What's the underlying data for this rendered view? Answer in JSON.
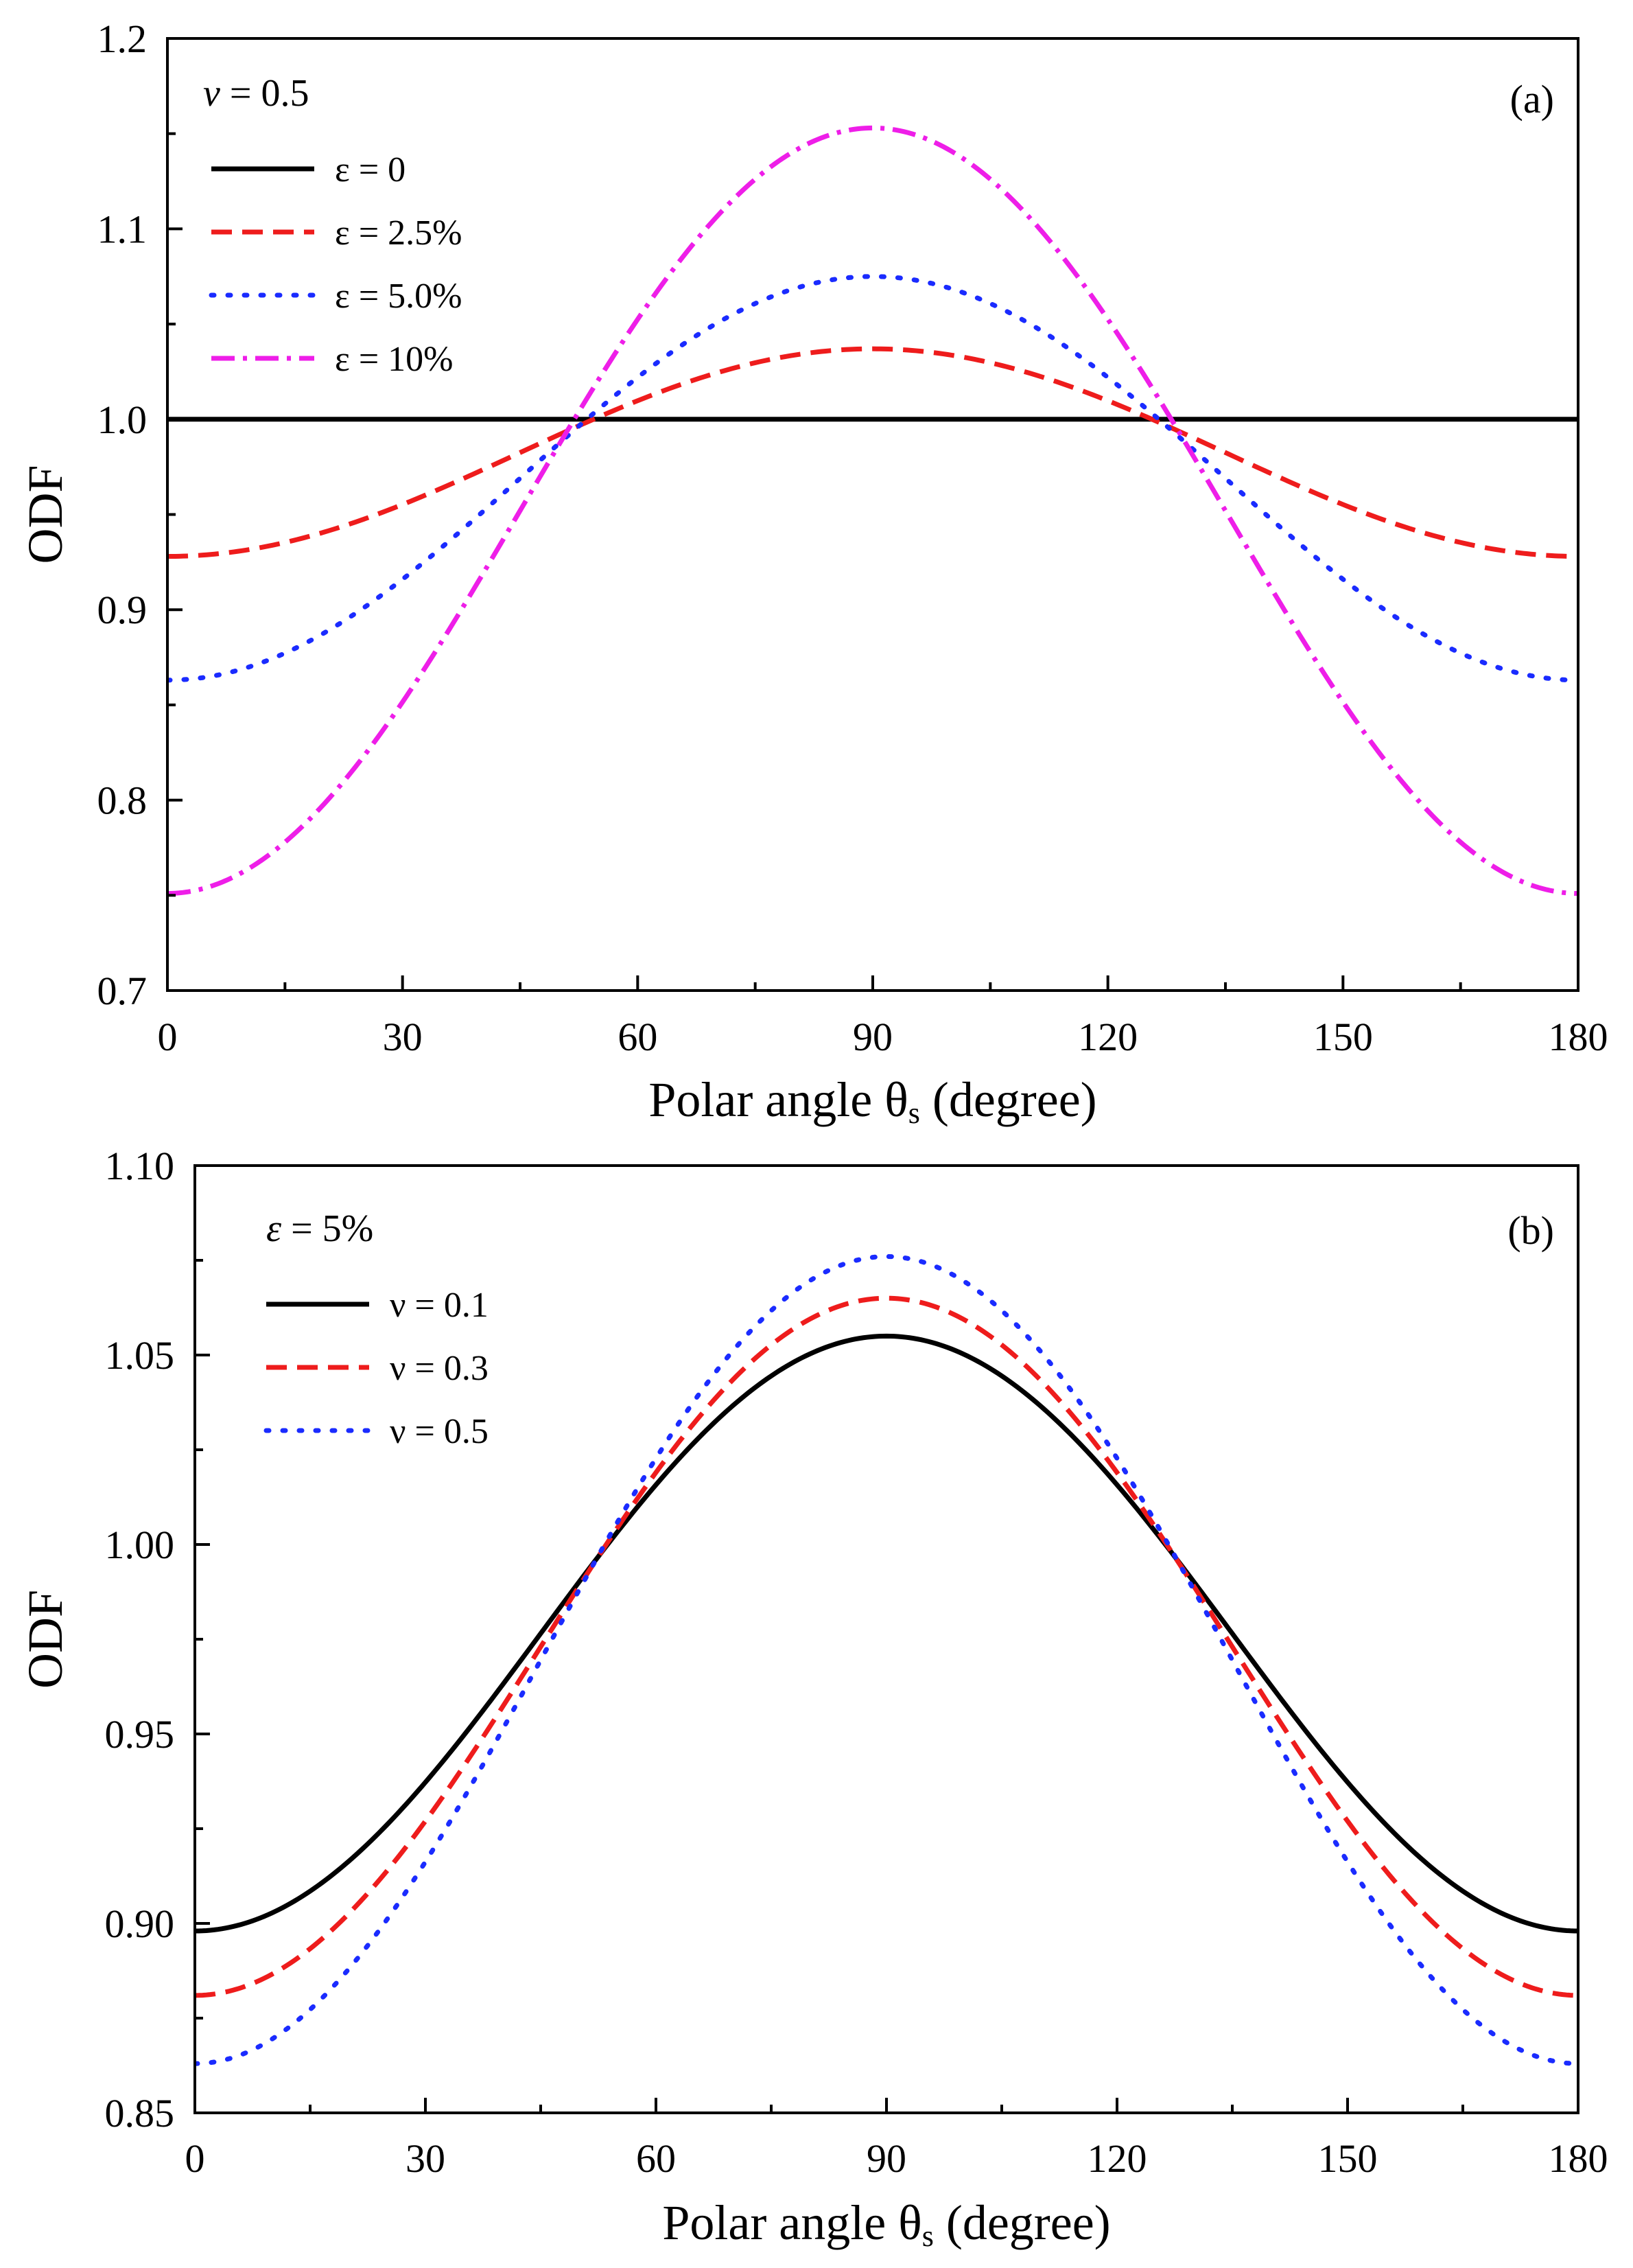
{
  "chart_data": [
    {
      "type": "line",
      "panel_label": "(a)",
      "parameter": {
        "symbol": "ν",
        "value_text": " = 0.5"
      },
      "xlabel": {
        "main": "Polar angle θ",
        "sub": "s",
        "unit": " (degree)"
      },
      "ylabel": "ODF",
      "xlim": [
        0,
        180
      ],
      "ylim": [
        0.7,
        1.2
      ],
      "xticks": [
        0,
        30,
        60,
        90,
        120,
        150,
        180
      ],
      "xtick_labels": [
        "0",
        "30",
        "60",
        "90",
        "120",
        "150",
        "180"
      ],
      "yticks": [
        0.7,
        0.8,
        0.9,
        1.0,
        1.1,
        1.2
      ],
      "ytick_labels": [
        "0.7",
        "0.8",
        "0.9",
        "1.0",
        "1.1",
        "1.2"
      ],
      "legend_position": "top-left",
      "grid": false,
      "series": [
        {
          "name": "ε = 0",
          "color": "#000000",
          "style": "solid",
          "min": 1.0,
          "max": 1.0
        },
        {
          "name": "ε = 2.5%",
          "color": "#ee1c1c",
          "style": "dashed",
          "min": 0.928,
          "max": 1.037
        },
        {
          "name": "ε = 5.0%",
          "color": "#1a2bff",
          "style": "dotted",
          "min": 0.863,
          "max": 1.075
        },
        {
          "name": "ε = 10%",
          "color": "#ee1ee8",
          "style": "dashdot",
          "min": 0.751,
          "max": 1.153
        }
      ]
    },
    {
      "type": "line",
      "panel_label": "(b)",
      "parameter": {
        "symbol": "ε",
        "value_text": " = 5%"
      },
      "xlabel": {
        "main": "Polar angle θ",
        "sub": "s",
        "unit": " (degree)"
      },
      "ylabel": "ODF",
      "xlim": [
        0,
        180
      ],
      "ylim": [
        0.85,
        1.1
      ],
      "xticks": [
        0,
        30,
        60,
        90,
        120,
        150,
        180
      ],
      "xtick_labels": [
        "0",
        "30",
        "60",
        "90",
        "120",
        "150",
        "180"
      ],
      "yticks": [
        0.85,
        0.9,
        0.95,
        1.0,
        1.05,
        1.1
      ],
      "ytick_labels": [
        "0.85",
        "0.90",
        "0.95",
        "1.00",
        "1.05",
        "1.10"
      ],
      "legend_position": "top-left",
      "grid": false,
      "series": [
        {
          "name": "ν = 0.1",
          "color": "#000000",
          "style": "solid",
          "min": 0.898,
          "max": 1.055
        },
        {
          "name": "ν = 0.3",
          "color": "#ee1c1c",
          "style": "dashed",
          "min": 0.881,
          "max": 1.065
        },
        {
          "name": "ν = 0.5",
          "color": "#1a2bff",
          "style": "dotted",
          "min": 0.863,
          "max": 1.076
        }
      ]
    }
  ]
}
